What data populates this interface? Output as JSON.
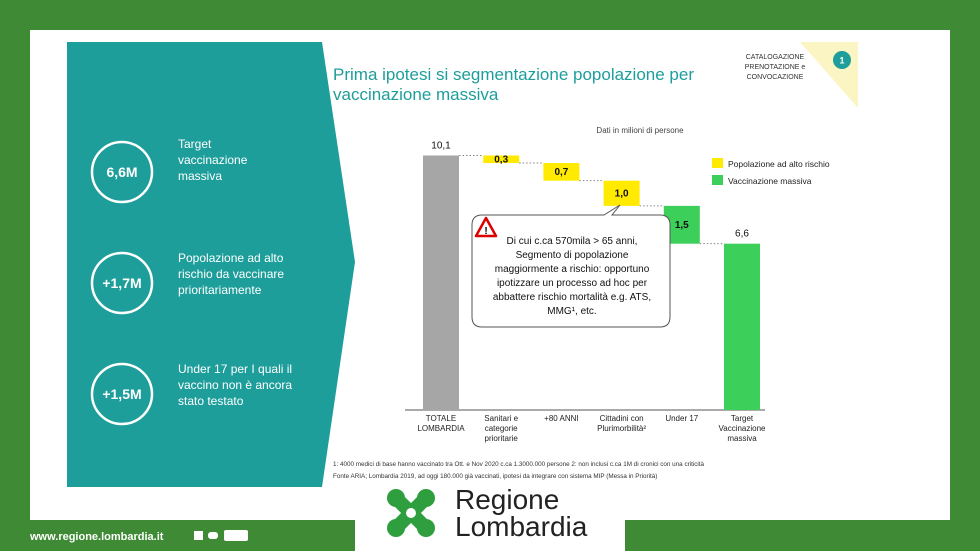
{
  "sidebar": {
    "items": [
      {
        "badge": "6,6M",
        "lines": [
          "Target",
          "vaccinazione",
          "massiva"
        ]
      },
      {
        "badge": "+1,7M",
        "lines": [
          "Popolazione ad alto",
          "rischio da vaccinare",
          "prioritariamente"
        ]
      },
      {
        "badge": "+1,5M",
        "lines": [
          "Under 17 per  I quali il",
          "vaccino non è ancora",
          "stato testato"
        ]
      }
    ]
  },
  "corner": {
    "lines": [
      "CATALOGAZIONE",
      "PRENOTAZIONE e",
      "CONVOCAZIONE"
    ],
    "step": "1"
  },
  "chart_data": {
    "type": "waterfall",
    "title": [
      "Prima ipotesi si segmentazione popolazione per",
      "vaccinazione massiva"
    ],
    "subtitle": "Dati in milioni di persone",
    "categories": [
      "TOTALE LOMBARDIA",
      "Sanitari e categorie prioritarie",
      "+80 ANNI",
      "Cittadini con Plurimorbilità²",
      "Under 17",
      "Target Vaccinazione massiva"
    ],
    "values": [
      10.1,
      -0.3,
      -0.7,
      -1.0,
      -1.5,
      6.6
    ],
    "value_labels": [
      "10,1",
      "0,3",
      "0,7",
      "1,0",
      "1,5",
      "6,6"
    ],
    "measures": [
      "total",
      "delta",
      "delta",
      "delta",
      "delta",
      "total"
    ],
    "colors": [
      "#a6a6a6",
      "#ffea00",
      "#ffea00",
      "#ffea00",
      "#3ccf5a",
      "#3ccf5a"
    ],
    "legend": [
      {
        "name": "Popolazione ad alto rischio",
        "color": "#ffea00"
      },
      {
        "name": "Vaccinazione massiva",
        "color": "#3ccf5a"
      }
    ],
    "annotation": [
      "Di cui c.ca 570mila > 65 anni,",
      "Segmento di popolazione",
      "maggiormente a rischio: opportuno",
      "ipotizzare un processo ad hoc per",
      "abbattere rischio mortalità e.g. ATS,",
      "MMG¹, etc."
    ]
  },
  "footnotes": [
    "1: 4000 medici di base hanno vaccinato tra Ott. e Nov 2020 c.ca 1.3000.000 persone 2: non inclusi c.ca 1M di cronici con una criticità",
    "Fonte ARIA; Lombardia 2019, ad oggi 180.000 già vaccinati, ipotesi da integrare con sistema MIP (Messa in Priorità)"
  ],
  "footer": {
    "url": "www.regione.lombardia.it",
    "logo": [
      "Regione",
      "Lombardia"
    ]
  }
}
